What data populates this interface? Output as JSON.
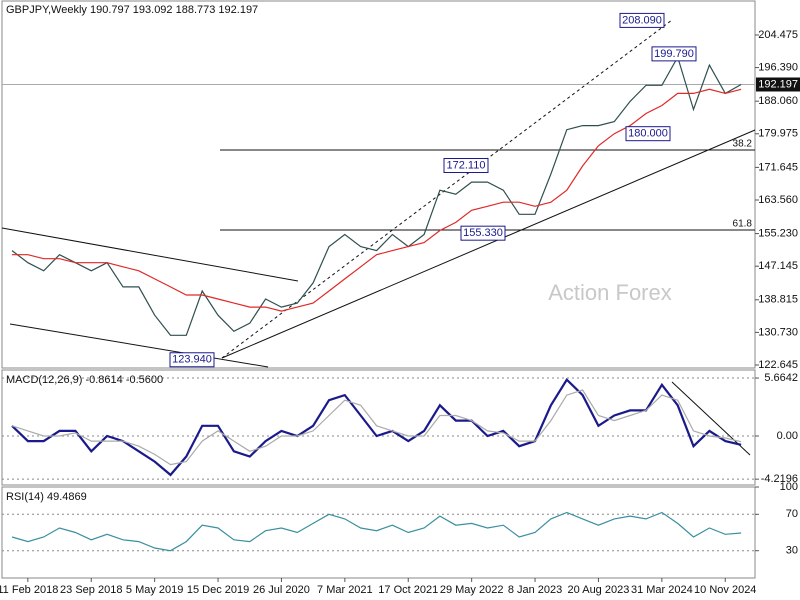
{
  "chart_data": [
    {
      "type": "line",
      "title": "GBPJPY,Weekly  190.797 193.092 188.773 192.197",
      "watermark": "Action Forex",
      "x": [
        null,
        "11 Feb 2018",
        null,
        null,
        null,
        "23 Sep 2018",
        null,
        null,
        null,
        "5 May 2019",
        null,
        null,
        null,
        "15 Dec 2019",
        null,
        null,
        null,
        "26 Jul 2020",
        null,
        null,
        null,
        "7 Mar 2021",
        null,
        null,
        null,
        "17 Oct 2021",
        null,
        null,
        null,
        "29 May 2022",
        null,
        null,
        null,
        "8 Jan 2023",
        null,
        null,
        null,
        "20 Aug 2023",
        null,
        null,
        null,
        "31 Mar 2024",
        null,
        null,
        null,
        "10 Nov 2024",
        null
      ],
      "series": [
        {
          "color": "#2f4f4f",
          "values": [
            151,
            148,
            146,
            150,
            148,
            146,
            148,
            142,
            142,
            135,
            130,
            130,
            141,
            135,
            131,
            133,
            139,
            137,
            138,
            143,
            152,
            155,
            152,
            151,
            155,
            152,
            155,
            166,
            165,
            168,
            168,
            166,
            160,
            160,
            170,
            181,
            182,
            182,
            183,
            188,
            192,
            192,
            199,
            186,
            197,
            190,
            192.197
          ]
        },
        {
          "color": "#e02828",
          "values": [
            150,
            150,
            149,
            149,
            148,
            148,
            148,
            147,
            146,
            144,
            142,
            140,
            140,
            139,
            138,
            137,
            137,
            136,
            137,
            138,
            141,
            144,
            147,
            150,
            151,
            152,
            153,
            156,
            158,
            161,
            162,
            163,
            163,
            162,
            163,
            166,
            172,
            177,
            180,
            182,
            185,
            187,
            190,
            190,
            191,
            190,
            191
          ]
        }
      ],
      "ylim": [
        121.9,
        213.15
      ],
      "yticks": [
        122.645,
        {
          "value": 130.73,
          "label": "130.730"
        },
        138.815,
        147.145,
        {
          "value": 155.23,
          "label": "155.230"
        },
        {
          "value": 163.56,
          "label": "163.560"
        },
        171.645,
        179.975,
        {
          "value": 188.06,
          "label": "188.060"
        },
        {
          "value": 196.39,
          "label": "196.390"
        },
        204.475
      ],
      "grid": false,
      "last_price": 192.197,
      "annotations": [
        {
          "value": 208.09,
          "label": "208.090"
        },
        {
          "value": 199.79,
          "label": "199.790"
        },
        {
          "value": 180,
          "label": "180.000"
        },
        {
          "value": 172.11,
          "label": "172.110"
        },
        {
          "value": 155.33,
          "label": "155.330"
        },
        {
          "value": 123.94,
          "label": "123.940"
        }
      ],
      "fib_levels": [
        {
          "ratio": 38.2,
          "price": 175.96
        },
        {
          "ratio": 61.8,
          "price": 156.12
        }
      ]
    },
    {
      "type": "line",
      "title": "MACD(12,26,9) -0.8614 -0.5600",
      "series": [
        {
          "color": "#1a1a8c",
          "values": [
            1,
            -0.5,
            -0.5,
            0.5,
            0.5,
            -1.5,
            0,
            -0.5,
            -1.5,
            -2.5,
            -3.8,
            -2,
            1,
            1,
            -1.5,
            -2,
            -0.5,
            0.5,
            0,
            1,
            3.5,
            4,
            2,
            0,
            0.5,
            -0.5,
            0.5,
            3,
            1.5,
            1.5,
            0,
            0.5,
            -1,
            -0.5,
            3,
            5.5,
            4,
            1,
            2,
            2.5,
            2.5,
            5,
            3,
            -1,
            0.5,
            -0.5,
            -0.8614
          ]
        },
        {
          "color": "#aaaaaa",
          "values": [
            1,
            0.5,
            0,
            0,
            0.3,
            -0.5,
            -0.5,
            -0.5,
            -1,
            -1.8,
            -2.8,
            -2.5,
            -0.5,
            0.5,
            -0.5,
            -1.5,
            -1,
            0,
            0,
            0.5,
            2,
            3.5,
            3,
            1,
            0.5,
            0,
            0,
            2,
            2,
            1.5,
            0.5,
            0.3,
            -0.5,
            -0.5,
            1.5,
            4,
            4.5,
            2,
            1.5,
            2,
            2.5,
            4,
            3.5,
            0.5,
            0,
            -0.2,
            -0.56
          ]
        }
      ],
      "ylim": [
        -4.79,
        6.45
      ],
      "yticks": [
        5.6642,
        {
          "value": 0,
          "label": "0.00"
        },
        -4.2196
      ],
      "grid": true
    },
    {
      "type": "line",
      "title": "RSI(14) 49.4869",
      "series": [
        {
          "color": "#3a8fa0",
          "values": [
            45,
            40,
            45,
            55,
            50,
            42,
            48,
            42,
            40,
            33,
            30,
            40,
            58,
            55,
            42,
            40,
            52,
            55,
            50,
            60,
            70,
            65,
            55,
            52,
            58,
            50,
            55,
            68,
            58,
            60,
            55,
            58,
            45,
            50,
            65,
            72,
            65,
            58,
            65,
            68,
            65,
            72,
            60,
            45,
            55,
            48,
            49.4869
          ]
        }
      ],
      "ylim": [
        0,
        100
      ],
      "yticks": [
        100,
        70,
        30
      ],
      "grid": true
    }
  ]
}
